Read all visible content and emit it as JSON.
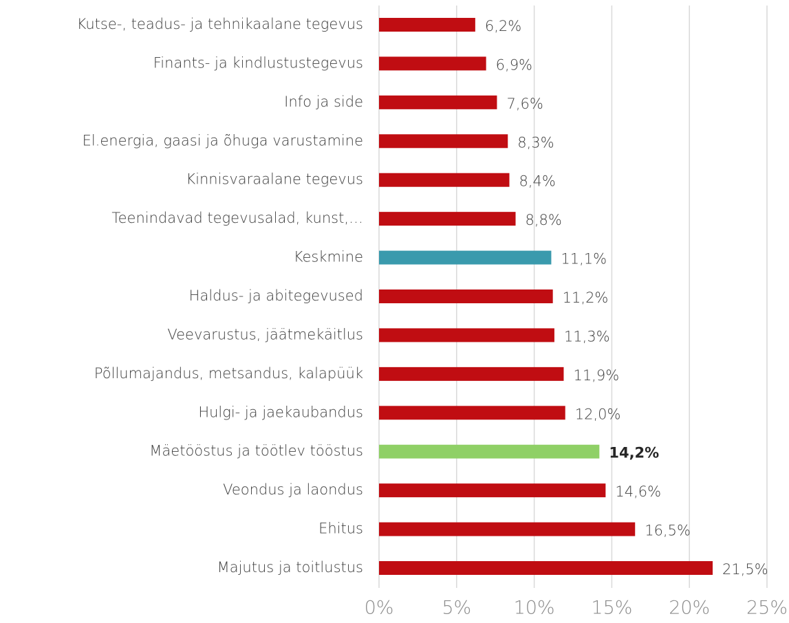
{
  "chart_data": {
    "type": "barh",
    "categories": [
      "Kutse-, teadus- ja tehnikaalane tegevus",
      "Finants- ja kindlustustegevus",
      "Info ja side",
      "El.energia, gaasi ja õhuga varustamine",
      "Kinnisvaraalane tegevus",
      "Teenindavad tegevusalad, kunst,…",
      "Keskmine",
      "Haldus- ja abitegevused",
      "Veevarustus, jäätmekäitlus",
      "Põllumajandus, metsandus, kalapüük",
      "Hulgi- ja jaekaubandus",
      "Mäetööstus ja töötlev tööstus",
      "Veondus ja laondus",
      "Ehitus",
      "Majutus ja toitlustus"
    ],
    "values": [
      6.2,
      6.9,
      7.6,
      8.3,
      8.4,
      8.8,
      11.1,
      11.2,
      11.3,
      11.9,
      12.0,
      14.2,
      14.6,
      16.5,
      21.5
    ],
    "value_labels": [
      "6,2%",
      "6,9%",
      "7,6%",
      "8,3%",
      "8,4%",
      "8,8%",
      "11,1%",
      "11,2%",
      "11,3%",
      "11,9%",
      "12,0%",
      "14,2%",
      "14,6%",
      "16,5%",
      "21,5%"
    ],
    "colors": [
      "#c00d12",
      "#c00d12",
      "#c00d12",
      "#c00d12",
      "#c00d12",
      "#c00d12",
      "#3a9aad",
      "#c00d12",
      "#c00d12",
      "#c00d12",
      "#c00d12",
      "#8fd066",
      "#c00d12",
      "#c00d12",
      "#c00d12"
    ],
    "bold_value_labels": [
      false,
      false,
      false,
      false,
      false,
      false,
      false,
      false,
      false,
      false,
      false,
      true,
      false,
      false,
      false
    ],
    "xlim": [
      0,
      25
    ],
    "xticks": [
      {
        "value": 0,
        "label": "0%"
      },
      {
        "value": 5,
        "label": "5%"
      },
      {
        "value": 10,
        "label": "10%"
      },
      {
        "value": 15,
        "label": "15%"
      },
      {
        "value": 20,
        "label": "20%"
      },
      {
        "value": 25,
        "label": "25%"
      }
    ],
    "grid": true
  }
}
